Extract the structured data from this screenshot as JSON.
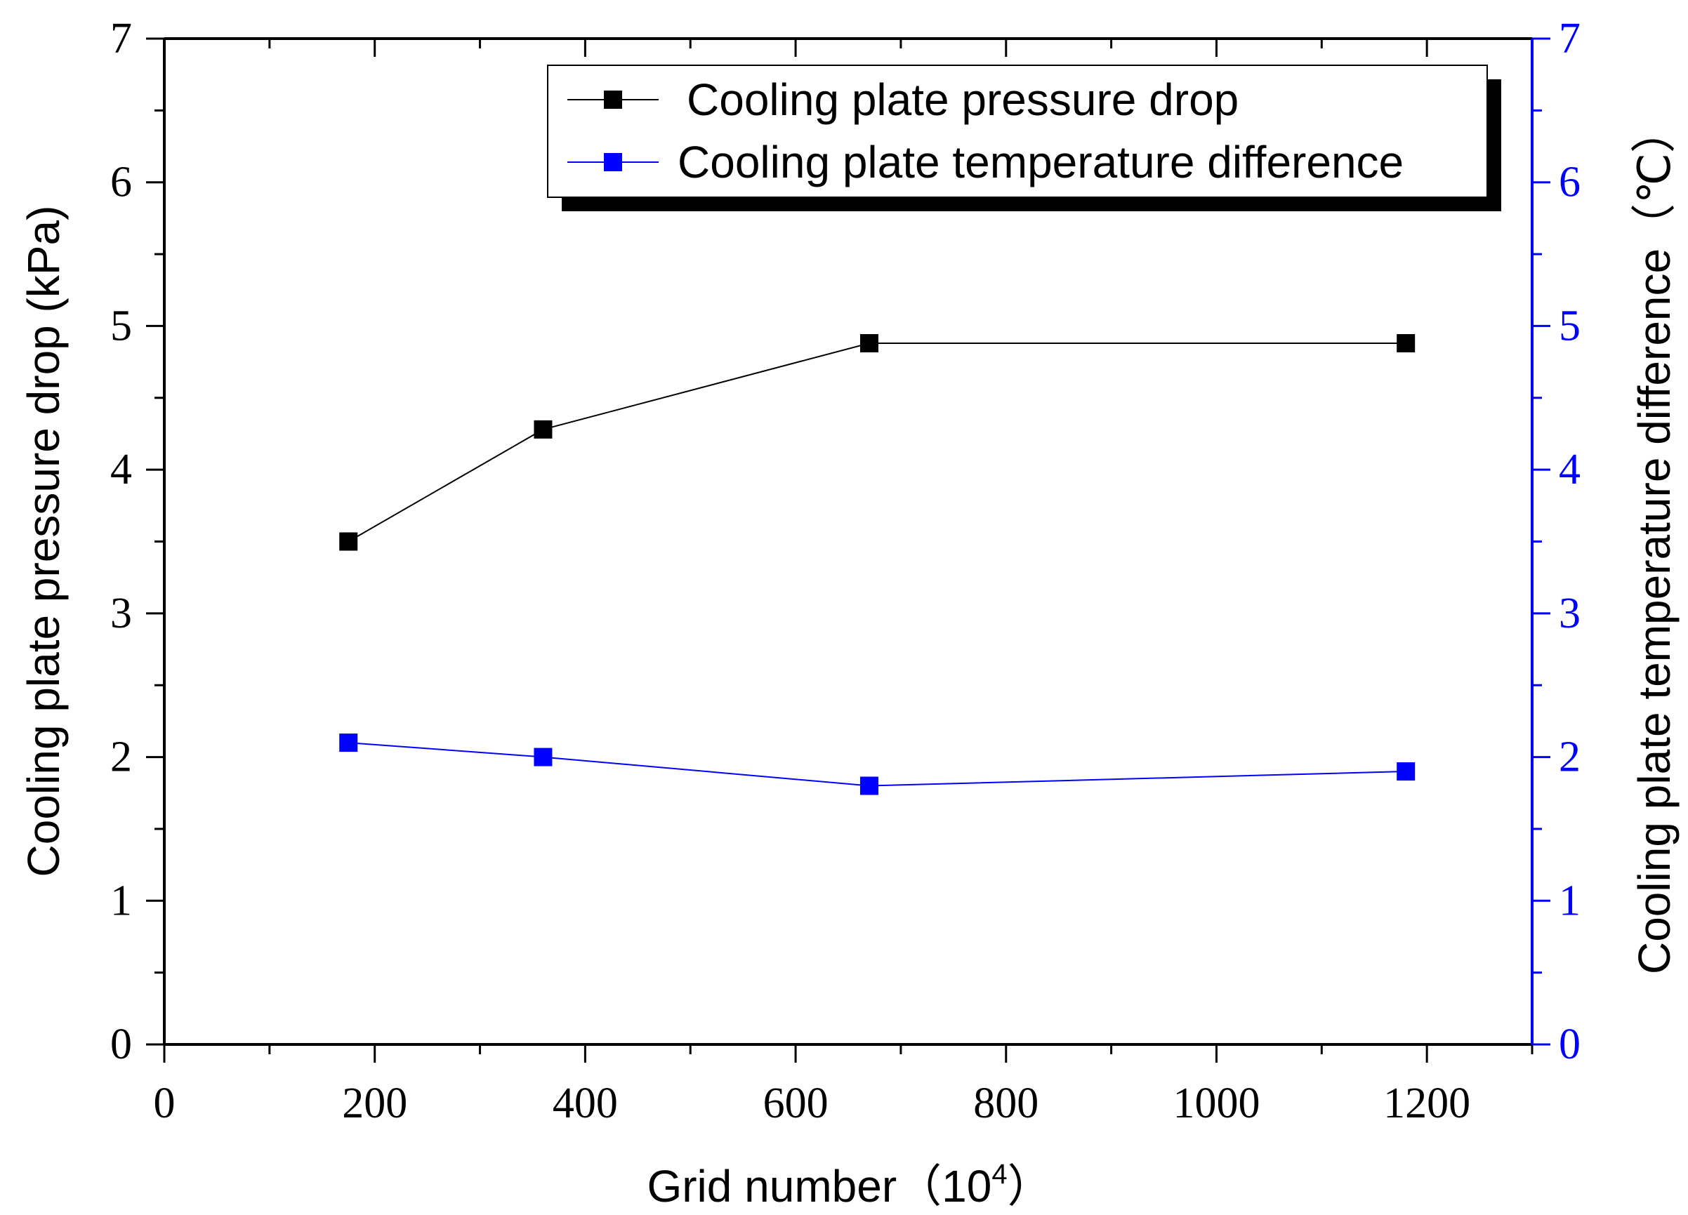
{
  "chart_data": {
    "type": "line",
    "x": [
      175,
      360,
      670,
      1180
    ],
    "series": [
      {
        "name": "Cooling plate pressure drop",
        "axis": "left",
        "color": "#000000",
        "values": [
          3.5,
          4.28,
          4.88,
          4.88
        ]
      },
      {
        "name": "Cooling plate temperature difference",
        "axis": "right",
        "color": "#0000ff",
        "values": [
          2.1,
          2.0,
          1.8,
          1.9
        ]
      }
    ],
    "xlabel": "Grid number（10",
    "xlabel_sup": "4",
    "xlabel_close": "）",
    "ylabel_left": "Cooling plate pressure drop (kPa)",
    "ylabel_right": "Cooling plate temperature difference（℃）",
    "xlim": [
      0,
      1300
    ],
    "ylim_left": [
      0,
      7
    ],
    "ylim_right": [
      0,
      7
    ],
    "xticks": [
      "0",
      "200",
      "400",
      "600",
      "800",
      "1000",
      "1200"
    ],
    "yticks_left": [
      "0",
      "1",
      "2",
      "3",
      "4",
      "5",
      "6",
      "7"
    ],
    "yticks_right": [
      "0",
      "1",
      "2",
      "3",
      "4",
      "5",
      "6",
      "7"
    ],
    "legend_position": "top-right",
    "grid": false,
    "axis_colors": {
      "left": "#000000",
      "right": "#0000ff"
    }
  }
}
